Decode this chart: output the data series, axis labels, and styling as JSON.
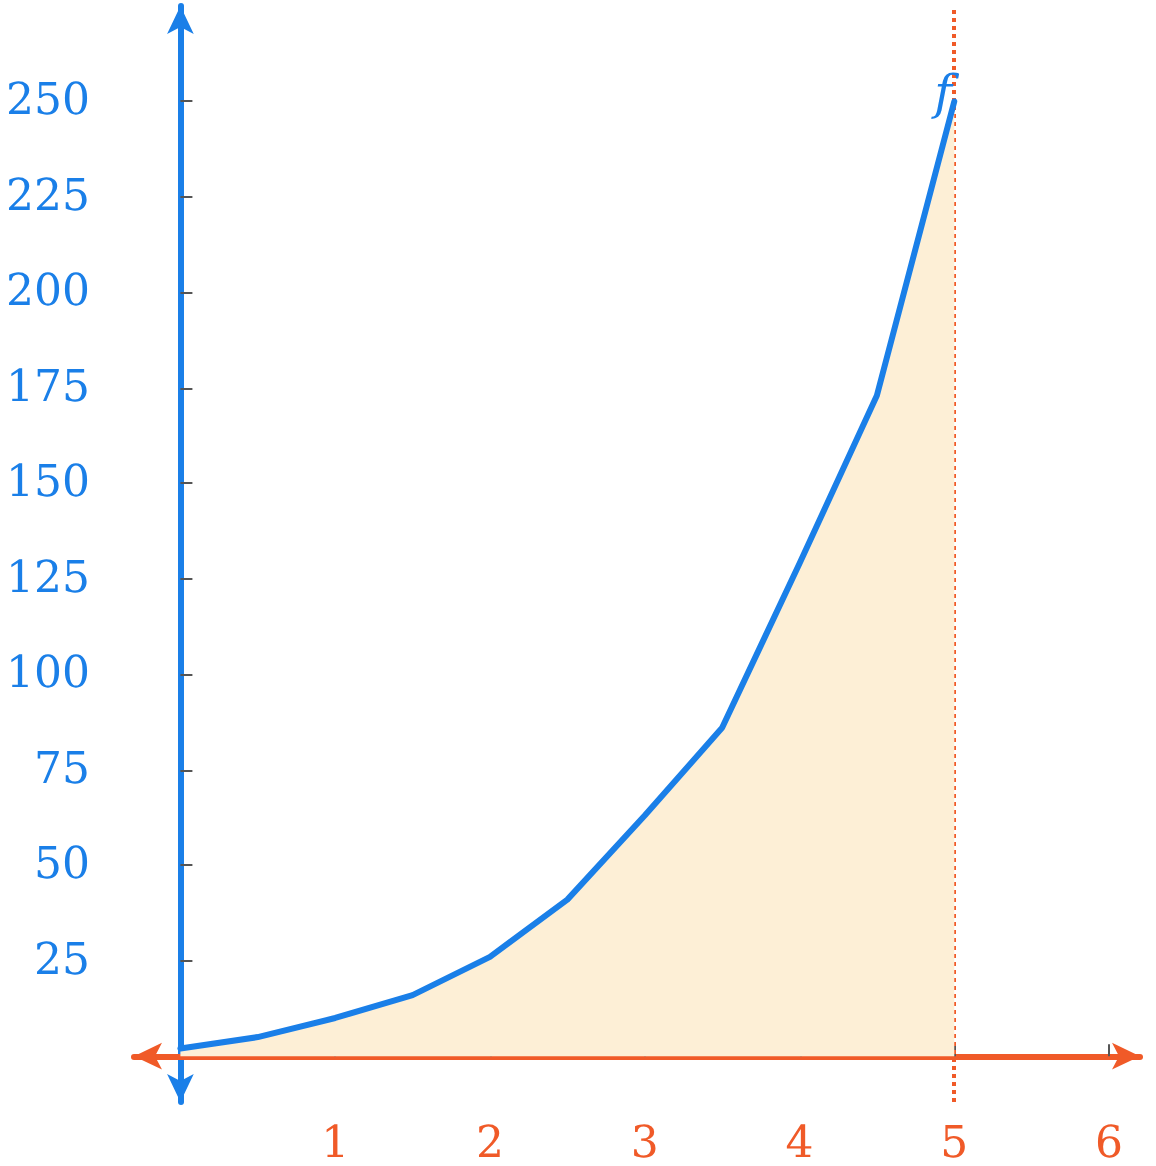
{
  "chart_data": {
    "type": "area",
    "x": [
      0,
      0.5,
      1,
      1.5,
      2,
      2.5,
      3,
      3.5,
      4,
      4.5,
      5
    ],
    "series": [
      {
        "name": "f",
        "color": "#1a7fe8",
        "values": [
          2,
          5,
          10,
          16,
          26,
          41,
          63,
          86,
          129,
          173,
          250
        ]
      }
    ],
    "xlim": [
      -0.3,
      6.2
    ],
    "xticks": [
      1,
      2,
      3,
      4,
      5,
      6
    ],
    "ylim": [
      -12,
      275
    ],
    "yticks": [
      25,
      50,
      75,
      100,
      125,
      150,
      175,
      200,
      225,
      250
    ],
    "ref_lines": [
      {
        "axis": "x",
        "value": 5,
        "color": "#f05a28",
        "line_style": "dotted"
      }
    ],
    "grid": false,
    "legend": false
  }
}
